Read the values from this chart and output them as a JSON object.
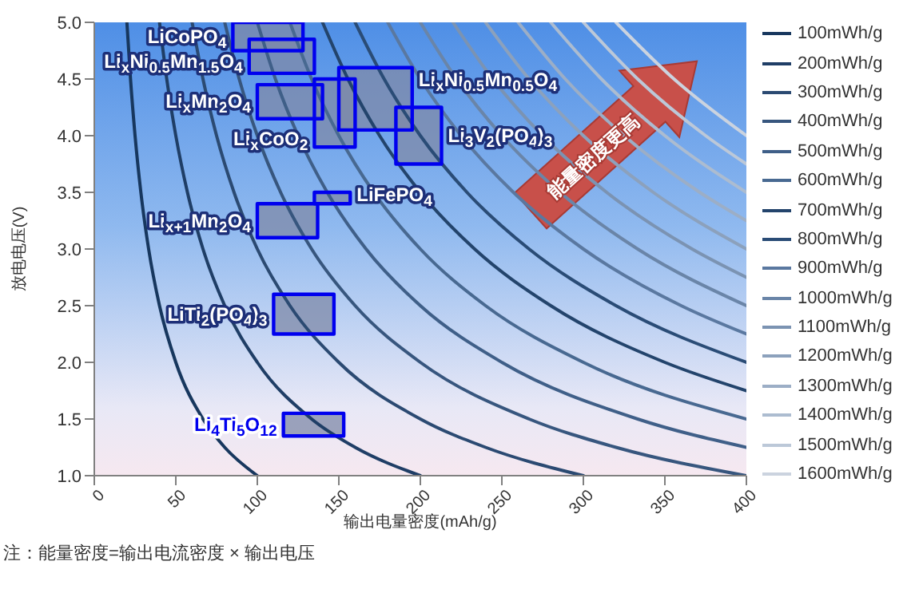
{
  "chart_data": {
    "type": "line",
    "xlabel": "输出电量密度(mAh/g)",
    "ylabel": "放电电压(V)",
    "xlim": [
      0,
      400
    ],
    "xticks": [
      0,
      50,
      100,
      150,
      200,
      250,
      300,
      350,
      400
    ],
    "ylim": [
      1,
      5
    ],
    "yticks": [
      {
        "value": 1,
        "label": "1.0"
      },
      {
        "value": 1.5,
        "label": "1.5"
      },
      {
        "value": 2,
        "label": "2.0"
      },
      {
        "value": 2.5,
        "label": "2.5"
      },
      {
        "value": 3,
        "label": "3.0"
      },
      {
        "value": 3.5,
        "label": "3.5"
      },
      {
        "value": 4,
        "label": "4.0"
      },
      {
        "value": 4.5,
        "label": "4.5"
      },
      {
        "value": 5,
        "label": "5.0"
      }
    ],
    "grid": false,
    "legend": "right",
    "marker": "none",
    "line_style": "solid",
    "annotations": [
      "能量密度更高",
      "注：能量密度=输出电流密度 × 输出电压"
    ],
    "series": [
      {
        "type": "line",
        "name": "100mWh/g",
        "color": "#17375e",
        "x": [
          20,
          22.22,
          25,
          28.57,
          33.33,
          40,
          50,
          66.67,
          80,
          100
        ],
        "values": [
          5,
          4.5,
          4,
          3.5,
          3,
          2.5,
          2,
          1.5,
          1.25,
          1
        ]
      },
      {
        "type": "line",
        "name": "200mWh/g",
        "color": "#1f3e66",
        "x": [
          40,
          44.44,
          50,
          57.14,
          66.67,
          80,
          100,
          133.3,
          160,
          200
        ],
        "values": [
          5,
          4.5,
          4,
          3.5,
          3,
          2.5,
          2,
          1.5,
          1.25,
          1
        ]
      },
      {
        "type": "line",
        "name": "300mWh/g",
        "color": "#2b4a72",
        "x": [
          60,
          66.67,
          75,
          85.71,
          100,
          120,
          150,
          200,
          240,
          300
        ],
        "values": [
          5,
          4.5,
          4,
          3.5,
          3,
          2.5,
          2,
          1.5,
          1.25,
          1
        ]
      },
      {
        "type": "line",
        "name": "400mWh/g",
        "color": "#37567e",
        "x": [
          80,
          88.89,
          100,
          114.3,
          133.3,
          160,
          200,
          266.7,
          320,
          400
        ],
        "values": [
          5,
          4.5,
          4,
          3.5,
          3,
          2.5,
          2,
          1.5,
          1.25,
          1
        ]
      },
      {
        "type": "line",
        "name": "500mWh/g",
        "color": "#3f5f88",
        "x": [
          100,
          111.1,
          125,
          142.9,
          166.7,
          200,
          250,
          333.3,
          400
        ],
        "values": [
          5,
          4.5,
          4,
          3.5,
          3,
          2.5,
          2,
          1.5,
          1.25
        ]
      },
      {
        "type": "line",
        "name": "600mWh/g",
        "color": "#486991",
        "x": [
          120,
          133.3,
          150,
          171.4,
          200,
          240,
          300,
          400
        ],
        "values": [
          5,
          4.5,
          4,
          3.5,
          3,
          2.5,
          2,
          1.5
        ]
      },
      {
        "type": "line",
        "name": "700mWh/g",
        "color": "#23446c",
        "x": [
          140,
          155.6,
          175,
          200,
          233.3,
          280,
          350,
          400
        ],
        "values": [
          5,
          4.5,
          4,
          3.5,
          3,
          2.5,
          2,
          1.75
        ]
      },
      {
        "type": "line",
        "name": "800mWh/g",
        "color": "#2a4c76",
        "x": [
          160,
          177.8,
          200,
          228.6,
          266.7,
          320,
          400
        ],
        "values": [
          5,
          4.5,
          4,
          3.5,
          3,
          2.5,
          2
        ]
      },
      {
        "type": "line",
        "name": "900mWh/g",
        "color": "#5a78a0",
        "x": [
          180,
          200,
          225,
          257.1,
          300,
          360,
          400
        ],
        "values": [
          5,
          4.5,
          4,
          3.5,
          3,
          2.5,
          2.25
        ]
      },
      {
        "type": "line",
        "name": "1000mWh/g",
        "color": "#6a85a8",
        "x": [
          200,
          222.2,
          250,
          285.7,
          333.3,
          400
        ],
        "values": [
          5,
          4.5,
          4,
          3.5,
          3,
          2.5
        ]
      },
      {
        "type": "line",
        "name": "1100mWh/g",
        "color": "#7b93b2",
        "x": [
          220,
          244.4,
          275,
          314.3,
          366.7,
          400
        ],
        "values": [
          5,
          4.5,
          4,
          3.5,
          3,
          2.75
        ]
      },
      {
        "type": "line",
        "name": "1200mWh/g",
        "color": "#8ca1bc",
        "x": [
          240,
          266.7,
          300,
          342.9,
          400
        ],
        "values": [
          5,
          4.5,
          4,
          3.5,
          3
        ]
      },
      {
        "type": "line",
        "name": "1300mWh/g",
        "color": "#9caec6",
        "x": [
          260,
          288.9,
          325,
          371.4,
          400
        ],
        "values": [
          5,
          4.5,
          4,
          3.5,
          3.25
        ]
      },
      {
        "type": "line",
        "name": "1400mWh/g",
        "color": "#acbcd0",
        "x": [
          280,
          311.1,
          350,
          400
        ],
        "values": [
          5,
          4.5,
          4,
          3.5
        ]
      },
      {
        "type": "line",
        "name": "1500mWh/g",
        "color": "#bcc8d8",
        "x": [
          300,
          333.3,
          375,
          400
        ],
        "values": [
          5,
          4.5,
          4,
          3.75
        ]
      },
      {
        "type": "line",
        "name": "1600mWh/g",
        "color": "#cbd3df",
        "x": [
          320,
          355.6,
          400
        ],
        "values": [
          5,
          4.5,
          4
        ]
      },
      {
        "type": "area",
        "name": "LiCoPO$_{4}$",
        "color": "#0000ee",
        "x": [
          85,
          128,
          128,
          85,
          85
        ],
        "values": [
          4.75,
          4.75,
          5,
          5,
          4.75
        ]
      },
      {
        "type": "area",
        "name": "Li$_{x}$Ni$_{0.5}$Mn$_{1.5}$O$_{4}$",
        "color": "#0000ee",
        "x": [
          95,
          135,
          135,
          95,
          95
        ],
        "values": [
          4.55,
          4.55,
          4.85,
          4.85,
          4.55
        ]
      },
      {
        "type": "area",
        "name": "Li$_{x}$Mn$_{2}$O$_{4}$",
        "color": "#0000ee",
        "x": [
          100,
          140,
          140,
          100,
          100
        ],
        "values": [
          4.15,
          4.15,
          4.45,
          4.45,
          4.15
        ]
      },
      {
        "type": "area",
        "name": "Li$_{x}$CoO$_{2}$",
        "color": "#0000ee",
        "x": [
          135,
          160,
          160,
          135,
          135
        ],
        "values": [
          3.9,
          3.9,
          4.5,
          4.5,
          3.9
        ]
      },
      {
        "type": "area",
        "name": "Li$_{x}$Ni$_{0.5}$Mn$_{0.5}$O$_{4}$",
        "color": "#0000ee",
        "x": [
          150,
          195,
          195,
          150,
          150
        ],
        "values": [
          4.05,
          4.05,
          4.6,
          4.6,
          4.05
        ]
      },
      {
        "type": "area",
        "name": "Li$_{3}$V$_{2}$(PO$_{4}$)$_{3}$",
        "color": "#0000ee",
        "x": [
          185,
          213,
          213,
          185,
          185
        ],
        "values": [
          3.75,
          3.75,
          4.25,
          4.25,
          3.75
        ]
      },
      {
        "type": "area",
        "name": "LiFePO$_{4}$",
        "color": "#0000ee",
        "x": [
          135,
          157,
          157,
          135,
          135
        ],
        "values": [
          3.4,
          3.4,
          3.5,
          3.5,
          3.4
        ]
      },
      {
        "type": "area",
        "name": "Li$_{x+1}$Mn$_{2}$O$_{4}$",
        "color": "#0000ee",
        "x": [
          100,
          137,
          137,
          100,
          100
        ],
        "values": [
          3.1,
          3.1,
          3.4,
          3.4,
          3.1
        ]
      },
      {
        "type": "area",
        "name": "LiTi$_{2}$(PO$_{4}$)$_{3}$",
        "color": "#0000ee",
        "x": [
          110,
          147,
          147,
          110,
          110
        ],
        "values": [
          2.25,
          2.25,
          2.6,
          2.6,
          2.25
        ]
      },
      {
        "type": "area",
        "name": "Li$_{4}$Ti$_{5}$O$_{12}$",
        "color": "#0000ee",
        "x": [
          116,
          153,
          153,
          116,
          116
        ],
        "values": [
          1.35,
          1.35,
          1.55,
          1.55,
          1.35
        ]
      }
    ]
  }
}
